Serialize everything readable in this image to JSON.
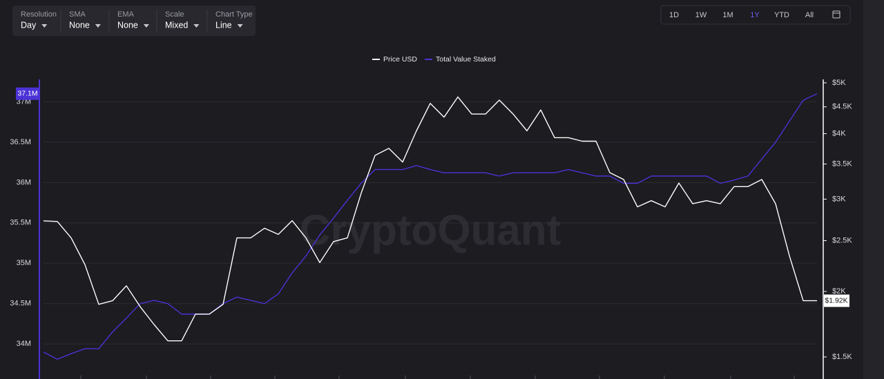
{
  "toolbar": {
    "selectors": [
      {
        "label": "Resolution",
        "value": "Day"
      },
      {
        "label": "SMA",
        "value": "None"
      },
      {
        "label": "EMA",
        "value": "None"
      },
      {
        "label": "Scale",
        "value": "Mixed"
      },
      {
        "label": "Chart Type",
        "value": "Line"
      }
    ],
    "ranges": [
      "1D",
      "1W",
      "1M",
      "1Y",
      "YTD",
      "All"
    ],
    "active_range": 3
  },
  "chart_data": {
    "type": "line",
    "watermark": "CryptoQuant",
    "ylim": [
      33600000,
      37320000
    ],
    "yticks": [
      {
        "value": 34000000,
        "label": "34M"
      },
      {
        "value": 34500000,
        "label": "34.5M"
      },
      {
        "value": 35000000,
        "label": "35M"
      },
      {
        "value": 35500000,
        "label": "35.5M"
      },
      {
        "value": 36000000,
        "label": "36M"
      },
      {
        "value": 36500000,
        "label": "36.5M"
      },
      {
        "value": 37000000,
        "label": "37M"
      }
    ],
    "y2lim": [
      1378,
      5154
    ],
    "y2scale": "log",
    "y2ticks": [
      {
        "value": 1500,
        "label": "$1.5K"
      },
      {
        "value": 2000,
        "label": "$2K"
      },
      {
        "value": 2500,
        "label": "$2.5K"
      },
      {
        "value": 3000,
        "label": "$3K"
      },
      {
        "value": 3500,
        "label": "$3.5K"
      },
      {
        "value": 4000,
        "label": "$4K"
      },
      {
        "value": 4500,
        "label": "$4.5K"
      },
      {
        "value": 5000,
        "label": "$5K"
      }
    ],
    "grid": true,
    "legend": "top",
    "series": [
      {
        "name": "Price USD",
        "color": "#ffffff",
        "axis": "y2",
        "last_label": "$1.92K",
        "values": [
          2727,
          2720,
          2530,
          2250,
          1890,
          1920,
          2050,
          1870,
          1730,
          1610,
          1610,
          1810,
          1810,
          1890,
          2530,
          2530,
          2640,
          2570,
          2730,
          2530,
          2270,
          2490,
          2530,
          3080,
          3635,
          3750,
          3530,
          4050,
          4570,
          4300,
          4700,
          4360,
          4360,
          4635,
          4360,
          4050,
          4440,
          3930,
          3930,
          3870,
          3870,
          3370,
          3270,
          2900,
          2980,
          2900,
          3220,
          2940,
          2980,
          2940,
          3170,
          3170,
          3270,
          2940,
          2340,
          1920,
          1920
        ]
      },
      {
        "name": "Total Value Staked",
        "color": "#4b32d6",
        "axis": "y",
        "last_label": "37.1M",
        "values": [
          33900000,
          33810000,
          33880000,
          33940000,
          33940000,
          34150000,
          34320000,
          34500000,
          34540000,
          34500000,
          34370000,
          34370000,
          34370000,
          34500000,
          34580000,
          34540000,
          34500000,
          34620000,
          34880000,
          35090000,
          35350000,
          35560000,
          35780000,
          35990000,
          36160000,
          36160000,
          36160000,
          36210000,
          36160000,
          36120000,
          36120000,
          36120000,
          36120000,
          36080000,
          36120000,
          36120000,
          36120000,
          36120000,
          36160000,
          36120000,
          36080000,
          36080000,
          35990000,
          35990000,
          36080000,
          36080000,
          36080000,
          36080000,
          36080000,
          35990000,
          36030000,
          36080000,
          36290000,
          36500000,
          36760000,
          37020000,
          37100000
        ]
      }
    ]
  }
}
